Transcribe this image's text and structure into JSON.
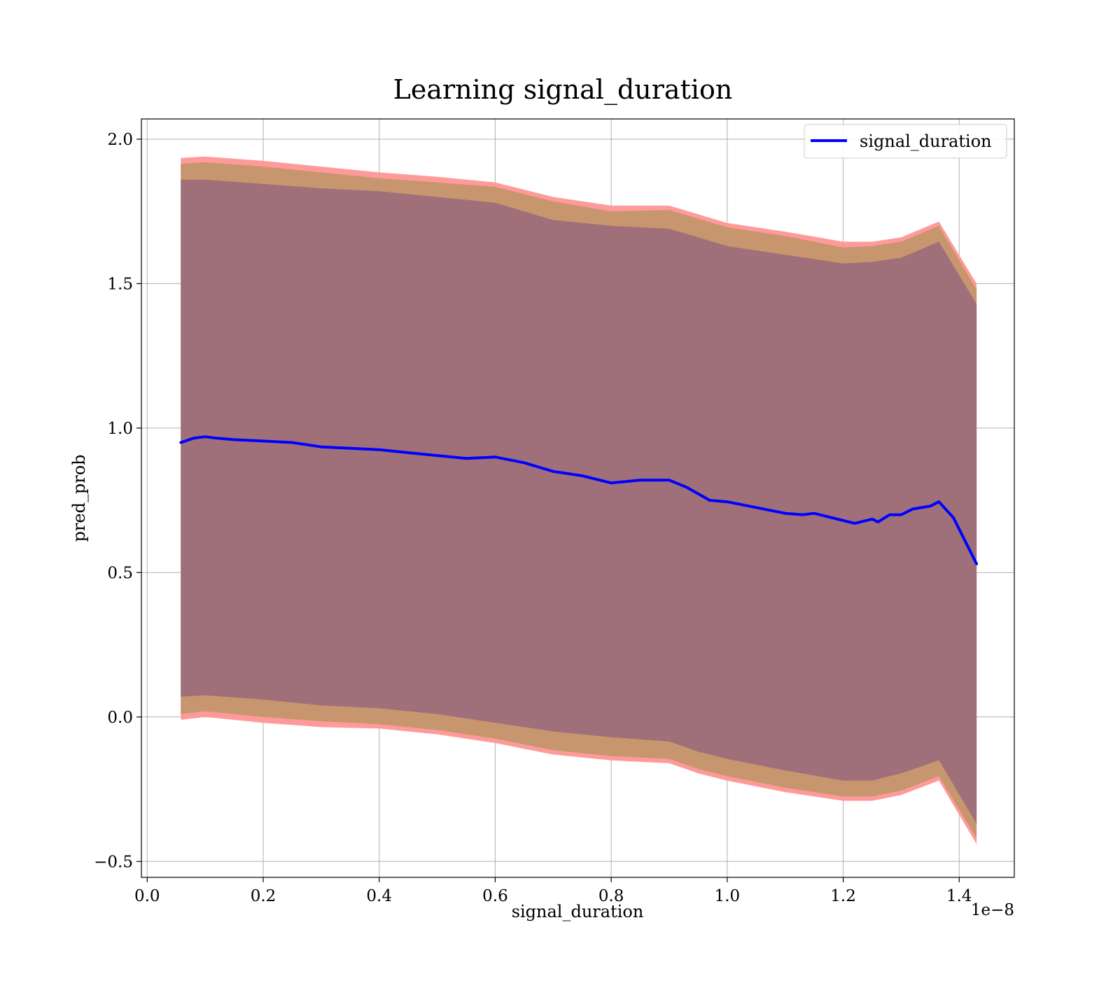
{
  "chart_data": {
    "type": "line",
    "title": "Learning signal_duration",
    "xlabel": "signal_duration",
    "ylabel": "pred_prob",
    "x_offset_label": "1e−8",
    "xlim": [
      -0.01,
      1.495
    ],
    "ylim": [
      -0.555,
      2.07
    ],
    "x_ticks": [
      0.0,
      0.2,
      0.4,
      0.6,
      0.8,
      1.0,
      1.2,
      1.4
    ],
    "x_tick_labels": [
      "0.0",
      "0.2",
      "0.4",
      "0.6",
      "0.8",
      "1.0",
      "1.2",
      "1.4"
    ],
    "y_ticks": [
      -0.5,
      0.0,
      0.5,
      1.0,
      1.5,
      2.0
    ],
    "y_tick_labels": [
      "−0.5",
      "0.0",
      "0.5",
      "1.0",
      "1.5",
      "2.0"
    ],
    "grid": true,
    "legend_position": "top-right",
    "colors": {
      "line": "#0000ff",
      "band_outer": "#ff9a9a",
      "band_middle": "#c8966e",
      "band_inner": "#a0707a",
      "grid": "#b0b0b0"
    },
    "series": [
      {
        "name": "signal_duration",
        "x": [
          0.058,
          0.08,
          0.1,
          0.12,
          0.15,
          0.2,
          0.25,
          0.3,
          0.35,
          0.4,
          0.45,
          0.5,
          0.55,
          0.6,
          0.65,
          0.7,
          0.75,
          0.8,
          0.85,
          0.9,
          0.93,
          0.97,
          1.0,
          1.05,
          1.1,
          1.13,
          1.15,
          1.2,
          1.22,
          1.25,
          1.26,
          1.28,
          1.3,
          1.32,
          1.35,
          1.365,
          1.39,
          1.43
        ],
        "y": [
          0.95,
          0.965,
          0.97,
          0.965,
          0.96,
          0.955,
          0.95,
          0.935,
          0.93,
          0.925,
          0.915,
          0.905,
          0.895,
          0.9,
          0.88,
          0.85,
          0.835,
          0.81,
          0.82,
          0.82,
          0.795,
          0.75,
          0.745,
          0.725,
          0.705,
          0.7,
          0.705,
          0.68,
          0.67,
          0.685,
          0.675,
          0.7,
          0.7,
          0.72,
          0.73,
          0.745,
          0.69,
          0.53
        ]
      }
    ],
    "bands": {
      "x": [
        0.058,
        0.1,
        0.2,
        0.3,
        0.4,
        0.5,
        0.6,
        0.7,
        0.8,
        0.9,
        0.95,
        1.0,
        1.1,
        1.2,
        1.25,
        1.3,
        1.365,
        1.43
      ],
      "outer_upper": [
        1.935,
        1.94,
        1.925,
        1.905,
        1.885,
        1.87,
        1.85,
        1.8,
        1.77,
        1.77,
        1.74,
        1.71,
        1.68,
        1.645,
        1.645,
        1.66,
        1.715,
        1.5
      ],
      "outer_lower": [
        -0.01,
        0.0,
        -0.02,
        -0.035,
        -0.04,
        -0.06,
        -0.09,
        -0.13,
        -0.15,
        -0.16,
        -0.195,
        -0.22,
        -0.26,
        -0.29,
        -0.29,
        -0.27,
        -0.22,
        -0.44
      ],
      "middle_upper": [
        1.915,
        1.92,
        1.905,
        1.885,
        1.865,
        1.85,
        1.835,
        1.785,
        1.75,
        1.755,
        1.725,
        1.695,
        1.665,
        1.625,
        1.63,
        1.645,
        1.7,
        1.48
      ],
      "middle_lower": [
        0.01,
        0.02,
        0.0,
        -0.015,
        -0.025,
        -0.045,
        -0.075,
        -0.115,
        -0.135,
        -0.145,
        -0.18,
        -0.205,
        -0.245,
        -0.275,
        -0.275,
        -0.255,
        -0.205,
        -0.42
      ],
      "inner_upper": [
        1.86,
        1.86,
        1.845,
        1.83,
        1.82,
        1.8,
        1.78,
        1.72,
        1.7,
        1.69,
        1.66,
        1.63,
        1.6,
        1.57,
        1.575,
        1.59,
        1.645,
        1.43
      ],
      "inner_lower": [
        0.07,
        0.075,
        0.06,
        0.04,
        0.03,
        0.01,
        -0.02,
        -0.05,
        -0.07,
        -0.085,
        -0.12,
        -0.145,
        -0.185,
        -0.22,
        -0.22,
        -0.195,
        -0.15,
        -0.37
      ]
    }
  }
}
